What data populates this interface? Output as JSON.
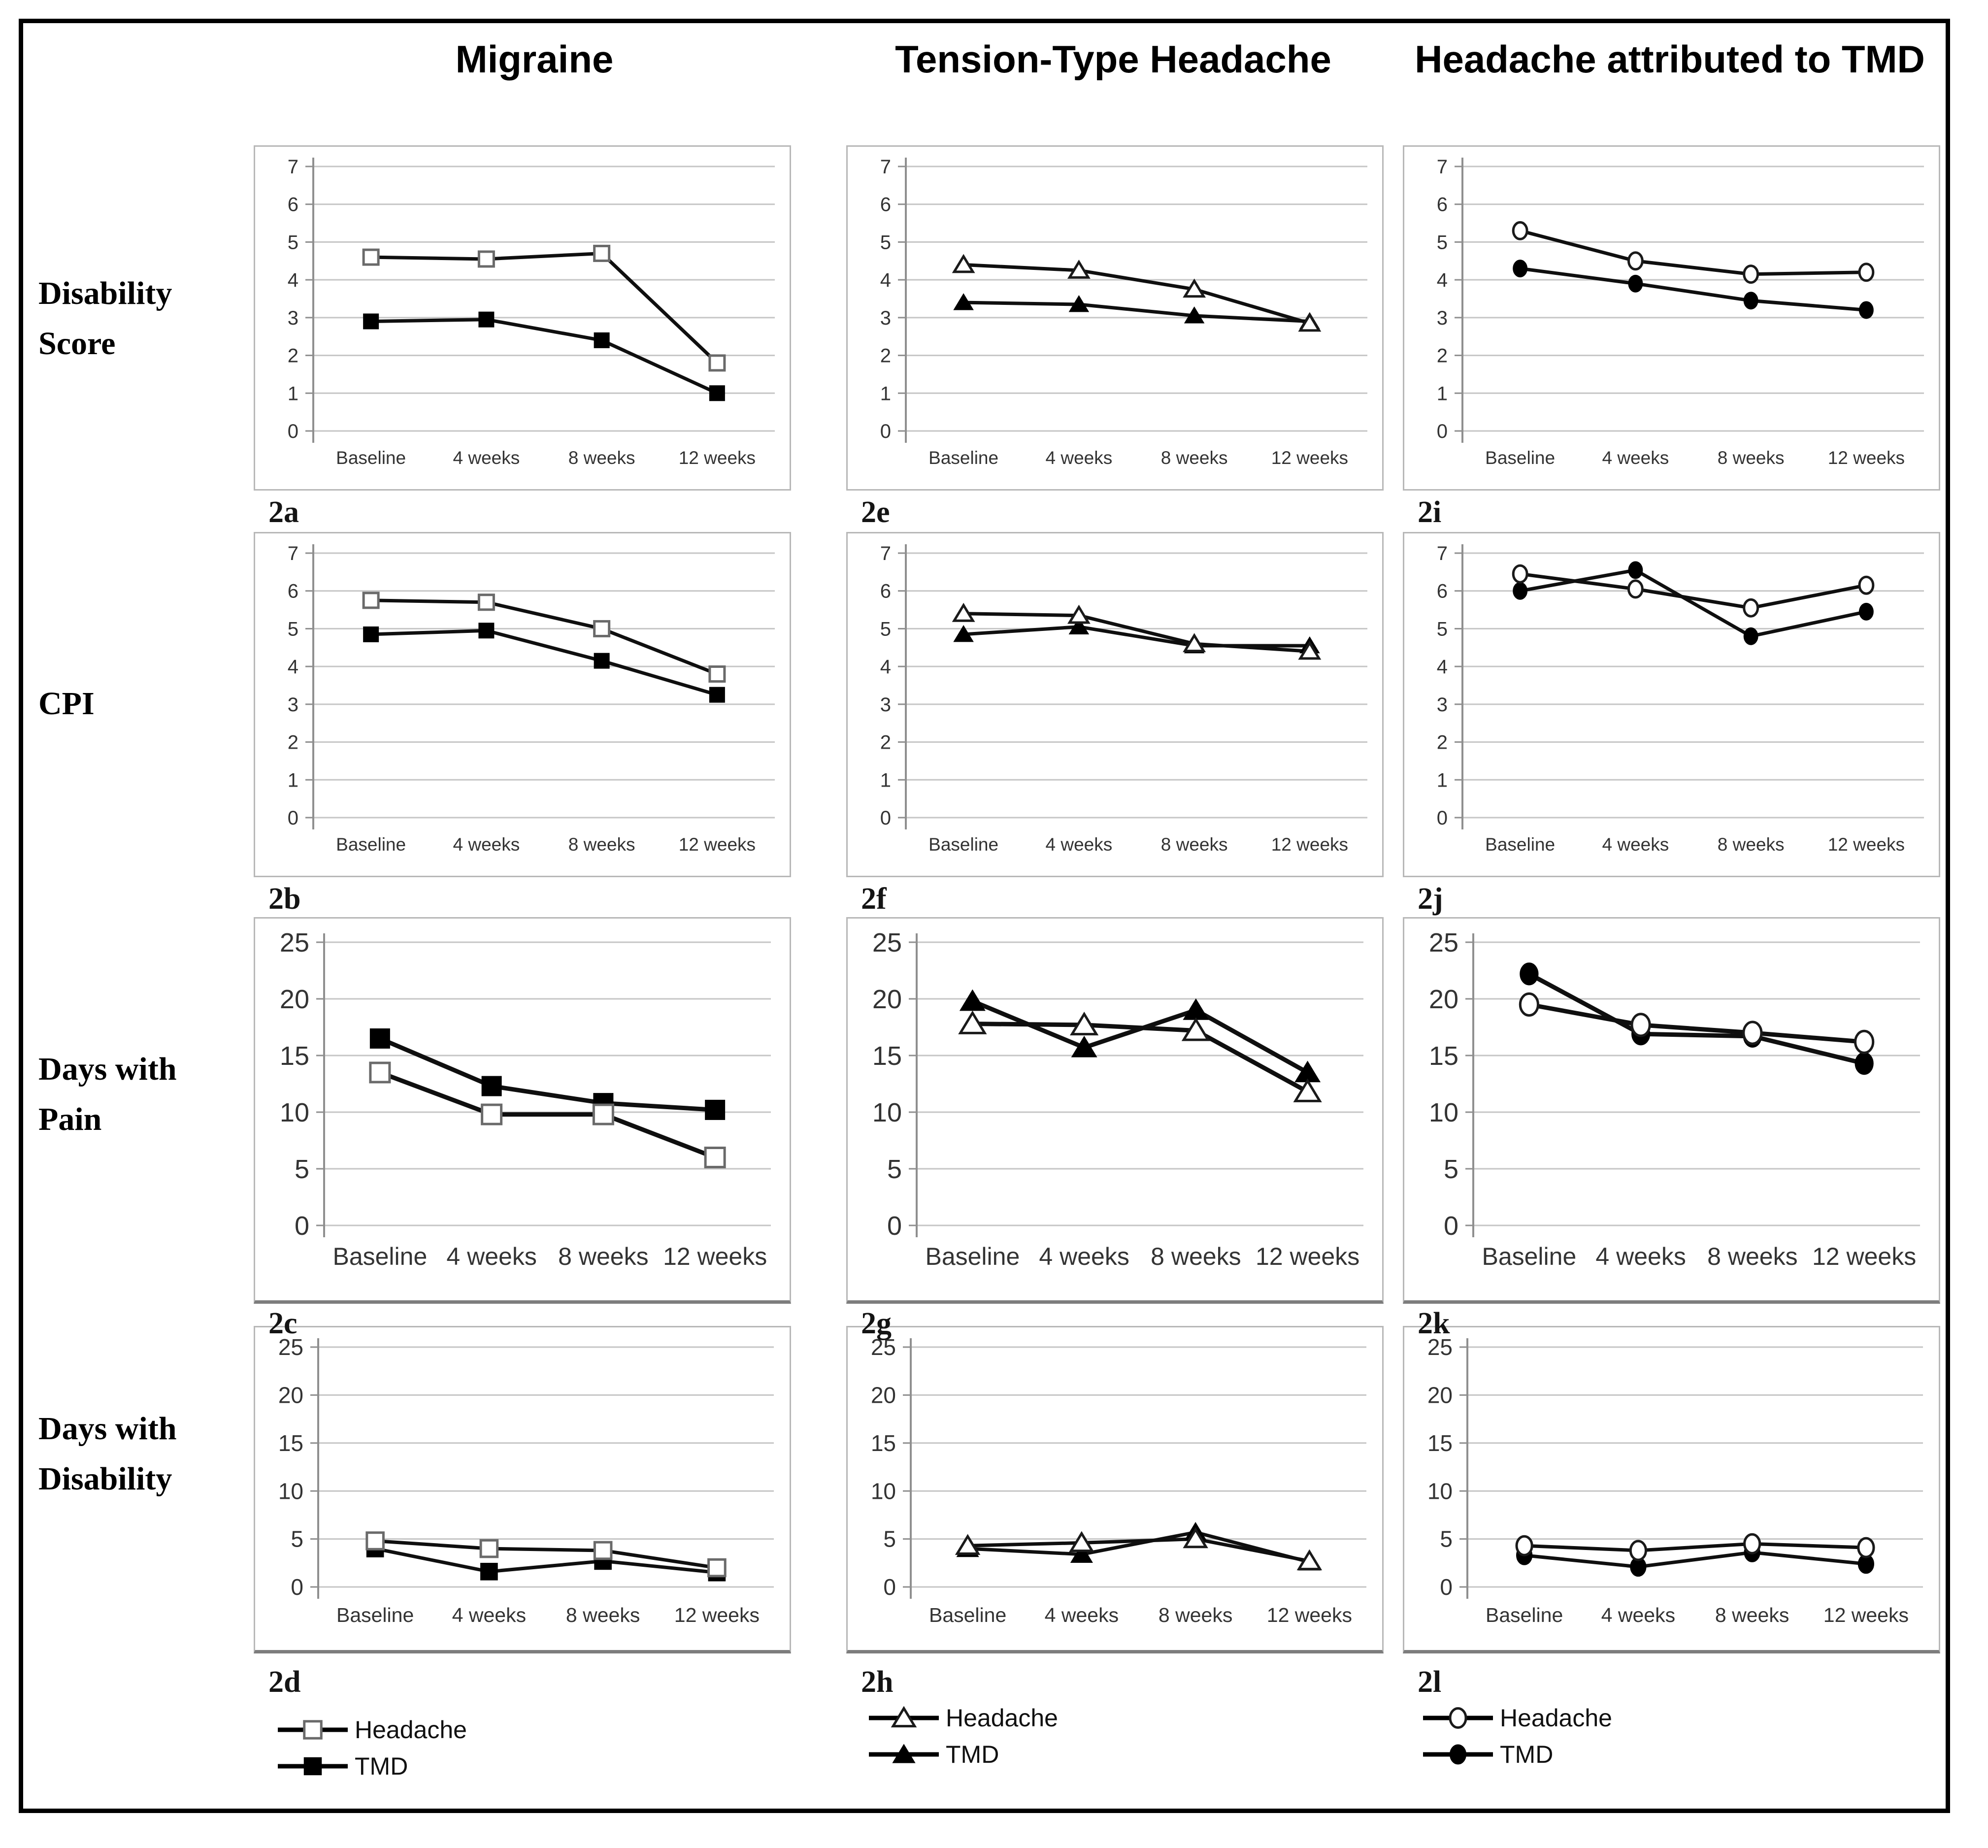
{
  "header": {
    "col1": "Migraine",
    "col2": "Tension-Type Headache",
    "col3": "Headache attributed to TMD"
  },
  "row_labels": [
    "Disability Score",
    "CPI",
    "Days with Pain",
    "Days with Disability"
  ],
  "legend": {
    "headache": "Headache",
    "tmd": "TMD"
  },
  "x_categories": [
    "Baseline",
    "4 weeks",
    "8 weeks",
    "12 weeks"
  ],
  "colors": {
    "line": "#0f0f0f",
    "grid": "#c6c6c6",
    "axis": "#8f8f8f",
    "open_fill": "#ffffff",
    "solid_fill": "#000000",
    "box_border": "#b8b8b8",
    "tick_text": "#333333"
  },
  "chart_data": [
    {
      "id": "2a",
      "panel_label": "2a",
      "type": "line",
      "marker": "square",
      "row": "Disability Score",
      "column": "Migraine",
      "ylim": [
        0,
        7
      ],
      "ytick_step": 1,
      "categories": [
        "Baseline",
        "4 weeks",
        "8 weeks",
        "12 weeks"
      ],
      "series": [
        {
          "name": "Headache",
          "style": "open",
          "values": [
            4.6,
            4.55,
            4.7,
            1.8
          ]
        },
        {
          "name": "TMD",
          "style": "solid",
          "values": [
            2.9,
            2.95,
            2.4,
            1.0
          ]
        }
      ]
    },
    {
      "id": "2e",
      "panel_label": "2e",
      "type": "line",
      "marker": "triangle",
      "row": "Disability Score",
      "column": "Tension-Type Headache",
      "ylim": [
        0,
        7
      ],
      "ytick_step": 1,
      "categories": [
        "Baseline",
        "4 weeks",
        "8 weeks",
        "12 weeks"
      ],
      "series": [
        {
          "name": "Headache",
          "style": "open",
          "values": [
            4.4,
            4.25,
            3.75,
            2.85
          ]
        },
        {
          "name": "TMD",
          "style": "solid",
          "values": [
            3.4,
            3.35,
            3.05,
            2.9
          ]
        }
      ]
    },
    {
      "id": "2i",
      "panel_label": "2i",
      "type": "line",
      "marker": "circle",
      "row": "Disability Score",
      "column": "Headache attributed to TMD",
      "ylim": [
        0,
        7
      ],
      "ytick_step": 1,
      "categories": [
        "Baseline",
        "4 weeks",
        "8 weeks",
        "12 weeks"
      ],
      "series": [
        {
          "name": "Headache",
          "style": "open",
          "values": [
            5.3,
            4.5,
            4.15,
            4.2
          ]
        },
        {
          "name": "TMD",
          "style": "solid",
          "values": [
            4.3,
            3.9,
            3.45,
            3.2
          ]
        }
      ]
    },
    {
      "id": "2b",
      "panel_label": "2b",
      "type": "line",
      "marker": "square",
      "row": "CPI",
      "column": "Migraine",
      "ylim": [
        0,
        7
      ],
      "ytick_step": 1,
      "categories": [
        "Baseline",
        "4 weeks",
        "8 weeks",
        "12 weeks"
      ],
      "series": [
        {
          "name": "Headache",
          "style": "open",
          "values": [
            5.75,
            5.7,
            5.0,
            3.8
          ]
        },
        {
          "name": "TMD",
          "style": "solid",
          "values": [
            4.85,
            4.95,
            4.15,
            3.25
          ]
        }
      ]
    },
    {
      "id": "2f",
      "panel_label": "2f",
      "type": "line",
      "marker": "triangle",
      "row": "CPI",
      "column": "Tension-Type Headache",
      "ylim": [
        0,
        7
      ],
      "ytick_step": 1,
      "categories": [
        "Baseline",
        "4 weeks",
        "8 weeks",
        "12 weeks"
      ],
      "series": [
        {
          "name": "Headache",
          "style": "open",
          "values": [
            5.4,
            5.35,
            4.6,
            4.4
          ]
        },
        {
          "name": "TMD",
          "style": "solid",
          "values": [
            4.85,
            5.05,
            4.55,
            4.55
          ]
        }
      ]
    },
    {
      "id": "2j",
      "panel_label": "2j",
      "type": "line",
      "marker": "circle",
      "row": "CPI",
      "column": "Headache attributed to TMD",
      "ylim": [
        0,
        7
      ],
      "ytick_step": 1,
      "categories": [
        "Baseline",
        "4 weeks",
        "8 weeks",
        "12 weeks"
      ],
      "series": [
        {
          "name": "Headache",
          "style": "open",
          "values": [
            6.45,
            6.05,
            5.55,
            6.15
          ]
        },
        {
          "name": "TMD",
          "style": "solid",
          "values": [
            6.0,
            6.55,
            4.8,
            5.45
          ]
        }
      ]
    },
    {
      "id": "2c",
      "panel_label": "2c",
      "type": "line",
      "marker": "square",
      "row": "Days with Pain",
      "column": "Migraine",
      "ylim": [
        0,
        25
      ],
      "ytick_step": 5,
      "categories": [
        "Baseline",
        "4 weeks",
        "8 weeks",
        "12 weeks"
      ],
      "series": [
        {
          "name": "Headache",
          "style": "open",
          "values": [
            13.5,
            9.8,
            9.8,
            6.0
          ]
        },
        {
          "name": "TMD",
          "style": "solid",
          "values": [
            16.5,
            12.3,
            10.8,
            10.2
          ]
        }
      ]
    },
    {
      "id": "2g",
      "panel_label": "2g",
      "type": "line",
      "marker": "triangle",
      "row": "Days with Pain",
      "column": "Tension-Type Headache",
      "ylim": [
        0,
        25
      ],
      "ytick_step": 5,
      "categories": [
        "Baseline",
        "4 weeks",
        "8 weeks",
        "12 weeks"
      ],
      "series": [
        {
          "name": "Headache",
          "style": "open",
          "values": [
            17.8,
            17.7,
            17.2,
            11.8
          ]
        },
        {
          "name": "TMD",
          "style": "solid",
          "values": [
            19.8,
            15.7,
            19.0,
            13.5
          ]
        }
      ]
    },
    {
      "id": "2k",
      "panel_label": "2k",
      "type": "line",
      "marker": "circle",
      "row": "Days with Pain",
      "column": "Headache attributed to TMD",
      "ylim": [
        0,
        25
      ],
      "ytick_step": 5,
      "categories": [
        "Baseline",
        "4 weeks",
        "8 weeks",
        "12 weeks"
      ],
      "series": [
        {
          "name": "Headache",
          "style": "open",
          "values": [
            19.5,
            17.7,
            17.0,
            16.2
          ]
        },
        {
          "name": "TMD",
          "style": "solid",
          "values": [
            22.2,
            16.9,
            16.7,
            14.3
          ]
        }
      ]
    },
    {
      "id": "2d",
      "panel_label": "2d",
      "type": "line",
      "marker": "square",
      "row": "Days with Disability",
      "column": "Migraine",
      "ylim": [
        0,
        25
      ],
      "ytick_step": 5,
      "categories": [
        "Baseline",
        "4 weeks",
        "8 weeks",
        "12 weeks"
      ],
      "series": [
        {
          "name": "Headache",
          "style": "open",
          "values": [
            4.8,
            4.0,
            3.8,
            2.0
          ]
        },
        {
          "name": "TMD",
          "style": "solid",
          "values": [
            4.0,
            1.6,
            2.7,
            1.5
          ]
        }
      ]
    },
    {
      "id": "2h",
      "panel_label": "2h",
      "type": "line",
      "marker": "triangle",
      "row": "Days with Disability",
      "column": "Tension-Type Headache",
      "ylim": [
        0,
        25
      ],
      "ytick_step": 5,
      "categories": [
        "Baseline",
        "4 weeks",
        "8 weeks",
        "12 weeks"
      ],
      "series": [
        {
          "name": "Headache",
          "style": "open",
          "values": [
            4.3,
            4.6,
            5.0,
            2.7
          ]
        },
        {
          "name": "TMD",
          "style": "solid",
          "values": [
            4.0,
            3.4,
            5.7,
            2.6
          ]
        }
      ]
    },
    {
      "id": "2l",
      "panel_label": "2l",
      "type": "line",
      "marker": "circle",
      "row": "Days with Disability",
      "column": "Headache attributed to TMD",
      "ylim": [
        0,
        25
      ],
      "ytick_step": 5,
      "categories": [
        "Baseline",
        "4 weeks",
        "8 weeks",
        "12 weeks"
      ],
      "series": [
        {
          "name": "Headache",
          "style": "open",
          "values": [
            4.3,
            3.8,
            4.5,
            4.1
          ]
        },
        {
          "name": "TMD",
          "style": "solid",
          "values": [
            3.3,
            2.1,
            3.6,
            2.4
          ]
        }
      ]
    }
  ]
}
